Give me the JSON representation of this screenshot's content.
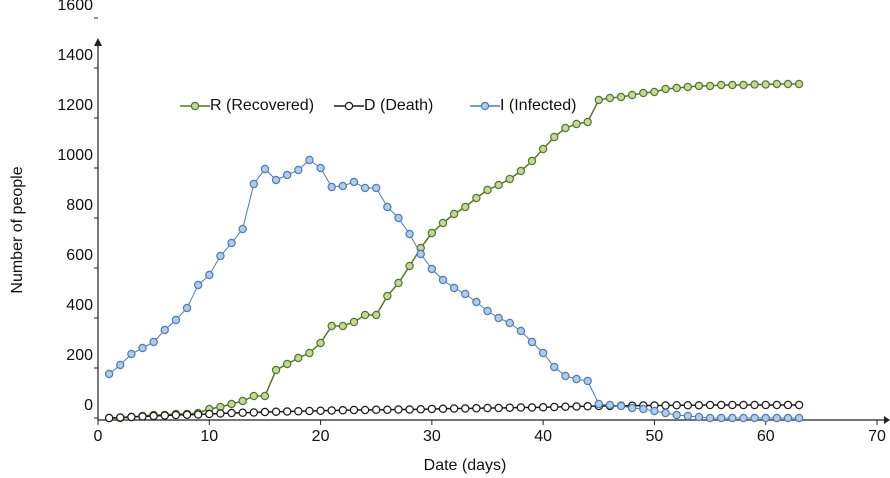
{
  "chart_data": {
    "type": "line",
    "x_label": "Date (days)",
    "y_label": "Number of people",
    "xlim": [
      0,
      70
    ],
    "xticks": [
      0,
      10,
      20,
      30,
      40,
      50,
      60,
      70
    ],
    "ylim": [
      0,
      1600
    ],
    "yticks": [
      0,
      200,
      400,
      600,
      800,
      1000,
      1200,
      1400,
      1600
    ],
    "legend": "top",
    "x": [
      1,
      2,
      3,
      4,
      5,
      6,
      7,
      8,
      9,
      10,
      11,
      12,
      13,
      14,
      15,
      16,
      17,
      18,
      19,
      20,
      21,
      22,
      23,
      24,
      25,
      26,
      27,
      28,
      29,
      30,
      31,
      32,
      33,
      34,
      35,
      36,
      37,
      38,
      39,
      40,
      41,
      42,
      43,
      44,
      45,
      46,
      47,
      48,
      49,
      50,
      51,
      52,
      53,
      54,
      55,
      56,
      57,
      58,
      59,
      60,
      61,
      62,
      63
    ],
    "series": [
      {
        "name": "R (Recovered)",
        "color": "#55762a",
        "marker_fill": "#c5d89c",
        "values": [
          0,
          0,
          4,
          8,
          12,
          12,
          16,
          16,
          20,
          36,
          44,
          56,
          68,
          88,
          88,
          192,
          216,
          240,
          260,
          300,
          368,
          368,
          384,
          412,
          412,
          488,
          540,
          608,
          680,
          740,
          780,
          816,
          844,
          880,
          912,
          932,
          956,
          988,
          1028,
          1076,
          1124,
          1160,
          1176,
          1184,
          1272,
          1280,
          1284,
          1292,
          1300,
          1304,
          1316,
          1320,
          1324,
          1328,
          1328,
          1332,
          1332,
          1332,
          1334,
          1334,
          1336,
          1336,
          1336
        ]
      },
      {
        "name": "D (Death)",
        "color": "#1a1a1a",
        "marker_fill": "#ffffff",
        "values": [
          0,
          2,
          4,
          6,
          8,
          10,
          12,
          13,
          14,
          16,
          18,
          20,
          21,
          22,
          24,
          25,
          26,
          27,
          28,
          29,
          30,
          31,
          32,
          32,
          33,
          33,
          34,
          34,
          35,
          36,
          37,
          38,
          38,
          39,
          40,
          40,
          41,
          42,
          42,
          43,
          44,
          45,
          46,
          47,
          48,
          48,
          49,
          49,
          50,
          50,
          50,
          51,
          51,
          51,
          52,
          52,
          52,
          52,
          52,
          52,
          52,
          52,
          52
        ]
      },
      {
        "name": "I (Infected)",
        "color": "#4a7db5",
        "marker_fill": "#b3cbe6",
        "values": [
          176,
          212,
          256,
          280,
          304,
          352,
          392,
          440,
          532,
          572,
          648,
          700,
          756,
          936,
          996,
          952,
          972,
          992,
          1032,
          1000,
          924,
          928,
          944,
          920,
          920,
          844,
          800,
          736,
          656,
          596,
          552,
          520,
          496,
          464,
          428,
          400,
          380,
          348,
          304,
          260,
          204,
          168,
          156,
          148,
          56,
          52,
          48,
          40,
          36,
          28,
          20,
          12,
          8,
          4,
          0,
          0,
          0,
          0,
          0,
          0,
          0,
          0,
          0
        ]
      }
    ]
  }
}
